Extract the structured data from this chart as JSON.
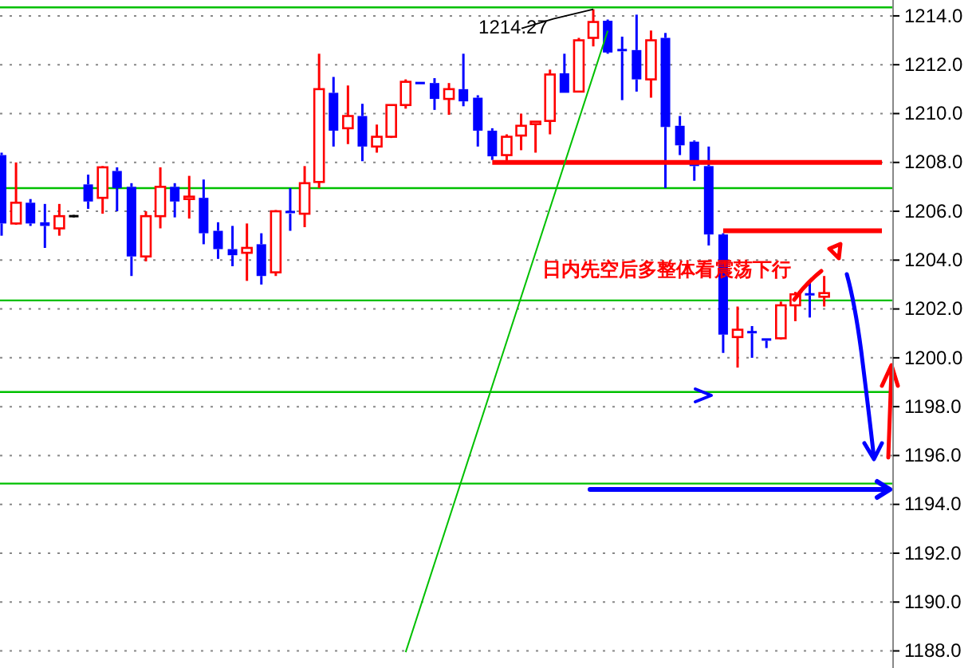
{
  "chart_data": {
    "type": "candlestick",
    "categories": [
      null,
      null,
      null,
      null,
      null,
      null,
      null,
      null,
      null,
      null,
      null,
      null,
      null,
      null,
      null,
      null,
      null,
      null,
      null,
      null,
      null,
      null,
      null,
      null,
      null,
      null,
      null,
      null,
      null,
      null,
      null,
      null,
      null,
      null,
      null,
      null,
      null,
      null,
      null,
      null,
      null,
      null,
      null,
      null,
      null,
      null,
      null,
      null,
      null,
      null,
      null,
      null,
      null,
      null,
      null,
      null,
      null,
      null,
      null,
      null,
      null,
      null
    ],
    "ohlc": [
      [
        1208.3,
        1208.4,
        1205.0,
        1205.5
      ],
      [
        1205.5,
        1208.0,
        1205.45,
        1206.35
      ],
      [
        1206.35,
        1206.5,
        1205.4,
        1205.5
      ],
      [
        1205.55,
        1206.3,
        1204.5,
        1205.4
      ],
      [
        1205.3,
        1206.3,
        1205.0,
        1205.8
      ],
      [
        1205.8,
        1205.85,
        1205.75,
        1205.8
      ],
      [
        1207.1,
        1207.5,
        1206.1,
        1206.4
      ],
      [
        1206.55,
        1207.85,
        1205.9,
        1207.8
      ],
      [
        1207.65,
        1207.8,
        1206.0,
        1206.95
      ],
      [
        1207.0,
        1207.15,
        1203.35,
        1204.15
      ],
      [
        1204.15,
        1206.0,
        1203.95,
        1205.8
      ],
      [
        1205.8,
        1207.8,
        1205.3,
        1207.0
      ],
      [
        1207.0,
        1207.15,
        1205.75,
        1206.4
      ],
      [
        1206.5,
        1207.45,
        1205.7,
        1206.55
      ],
      [
        1206.55,
        1207.3,
        1204.65,
        1205.1
      ],
      [
        1205.2,
        1205.55,
        1204.05,
        1204.45
      ],
      [
        1204.45,
        1205.4,
        1203.75,
        1204.2
      ],
      [
        1204.3,
        1205.5,
        1203.15,
        1204.5
      ],
      [
        1204.65,
        1205.1,
        1203.0,
        1203.35
      ],
      [
        1203.5,
        1206.05,
        1203.35,
        1206.0
      ],
      [
        1205.97,
        1206.95,
        1205.2,
        1205.9
      ],
      [
        1205.9,
        1207.85,
        1205.35,
        1207.15
      ],
      [
        1207.2,
        1212.45,
        1206.95,
        1211.0
      ],
      [
        1210.85,
        1211.5,
        1208.65,
        1209.3
      ],
      [
        1209.4,
        1211.15,
        1208.75,
        1209.9
      ],
      [
        1209.9,
        1210.4,
        1208.05,
        1208.65
      ],
      [
        1208.65,
        1209.55,
        1208.4,
        1209.05
      ],
      [
        1209.05,
        1210.35,
        1209.0,
        1210.35
      ],
      [
        1210.35,
        1211.4,
        1210.2,
        1211.3
      ],
      [
        1211.3,
        1211.3,
        1211.2,
        1211.2
      ],
      [
        1211.25,
        1211.45,
        1210.15,
        1210.6
      ],
      [
        1210.6,
        1211.25,
        1209.95,
        1211.0
      ],
      [
        1211.0,
        1212.45,
        1210.3,
        1210.5
      ],
      [
        1210.65,
        1210.75,
        1208.65,
        1209.3
      ],
      [
        1209.3,
        1209.4,
        1208.1,
        1208.25
      ],
      [
        1208.3,
        1209.15,
        1208.05,
        1209.05
      ],
      [
        1209.1,
        1210.0,
        1208.5,
        1209.5
      ],
      [
        1209.6,
        1209.62,
        1208.4,
        1209.62
      ],
      [
        1209.7,
        1211.8,
        1209.15,
        1211.6
      ],
      [
        1211.65,
        1212.45,
        1210.85,
        1210.85
      ],
      [
        1210.9,
        1213.1,
        1210.9,
        1213.0
      ],
      [
        1213.1,
        1214.27,
        1212.75,
        1213.75
      ],
      [
        1213.8,
        1213.85,
        1212.45,
        1212.5
      ],
      [
        1212.6,
        1213.15,
        1210.55,
        1212.55
      ],
      [
        1212.6,
        1214.05,
        1210.9,
        1211.4
      ],
      [
        1211.4,
        1213.4,
        1210.65,
        1213.0
      ],
      [
        1213.1,
        1213.3,
        1206.95,
        1209.45
      ],
      [
        1209.5,
        1209.9,
        1208.3,
        1208.7
      ],
      [
        1208.85,
        1208.9,
        1207.25,
        1207.85
      ],
      [
        1207.85,
        1208.65,
        1204.6,
        1205.05
      ],
      [
        1205.05,
        1205.1,
        1200.2,
        1200.95
      ],
      [
        1200.85,
        1202.1,
        1199.6,
        1201.15
      ],
      [
        1201.05,
        1201.3,
        1200.0,
        1201.0
      ],
      [
        1200.8,
        1200.8,
        1200.4,
        1200.7
      ],
      [
        1200.8,
        1202.3,
        1200.75,
        1202.15
      ],
      [
        1202.15,
        1202.7,
        1201.5,
        1202.6
      ],
      [
        1202.6,
        1203.15,
        1201.65,
        1202.55
      ],
      [
        1202.5,
        1203.35,
        1202.1,
        1202.65
      ],
      null,
      null,
      null,
      null
    ],
    "series": [
      {
        "type": "line",
        "color": "#ff0000",
        "values": [
          null,
          null,
          null,
          null,
          null,
          null,
          null,
          null,
          null,
          null,
          null,
          null,
          null,
          null,
          null,
          null,
          null,
          null,
          null,
          null,
          null,
          null,
          null,
          null,
          null,
          null,
          null,
          null,
          null,
          null,
          null,
          null,
          null,
          null,
          1208.0,
          1208.0,
          1208.0,
          1208.0,
          1208.0,
          1208.0,
          1208.0,
          1208.0,
          1208.0,
          1208.0,
          1208.0,
          1208.0,
          1208.0,
          1208.0,
          1208.0,
          1208.0,
          1208.0,
          1208.0,
          1208.0,
          1208.0,
          1208.0,
          1208.0,
          1208.0,
          1208.0,
          1208.0,
          1208.0,
          1208.0,
          1208.0
        ]
      },
      {
        "type": "line",
        "color": "#ff0000",
        "values": [
          null,
          null,
          null,
          null,
          null,
          null,
          null,
          null,
          null,
          null,
          null,
          null,
          null,
          null,
          null,
          null,
          null,
          null,
          null,
          null,
          null,
          null,
          null,
          null,
          null,
          null,
          null,
          null,
          null,
          null,
          null,
          null,
          null,
          null,
          null,
          null,
          null,
          null,
          null,
          null,
          null,
          null,
          null,
          null,
          null,
          null,
          null,
          null,
          null,
          null,
          1205.2,
          1205.2,
          1205.2,
          1205.2,
          1205.2,
          1205.2,
          1205.2,
          1205.2,
          1205.2,
          1205.2,
          1205.2,
          1205.2
        ]
      },
      {
        "type": "line",
        "color": "#00c000",
        "values": [
          null,
          null,
          null,
          null,
          null,
          null,
          null,
          null,
          null,
          null,
          null,
          null,
          null,
          null,
          null,
          null,
          null,
          null,
          null,
          null,
          null,
          null,
          null,
          null,
          null,
          null,
          null,
          null,
          1187.95,
          null,
          null,
          null,
          null,
          null,
          null,
          null,
          null,
          null,
          null,
          null,
          null,
          null,
          1213.39,
          null,
          null,
          null,
          null,
          null,
          null,
          null,
          null,
          null,
          null,
          null,
          null,
          null,
          null,
          null,
          null,
          null,
          null,
          null
        ]
      }
    ],
    "ref_lines": [
      {
        "axis": "y",
        "value": 1214.35,
        "color": "#00c000"
      },
      {
        "axis": "y",
        "value": 1206.95,
        "color": "#00c000"
      },
      {
        "axis": "y",
        "value": 1202.35,
        "color": "#00c000"
      },
      {
        "axis": "y",
        "value": 1198.6,
        "color": "#00c000"
      },
      {
        "axis": "y",
        "value": 1194.85,
        "color": "#00c000"
      }
    ],
    "annotations": [
      {
        "text": "1214.27",
        "y": 1214.27
      },
      "日内先空后多整体看震荡下行"
    ],
    "ylim": [
      1187.3,
      1214.65
    ],
    "yticks": [
      {
        "value": 1188,
        "label": "1188.0"
      },
      {
        "value": 1190,
        "label": "1190.0"
      },
      {
        "value": 1192,
        "label": "1192.0"
      },
      {
        "value": 1194,
        "label": "1194.0"
      },
      {
        "value": 1196,
        "label": "1196.0"
      },
      {
        "value": 1198,
        "label": "1198.0"
      },
      {
        "value": 1200,
        "label": "1200.0"
      },
      {
        "value": 1202,
        "label": "1202.0"
      },
      {
        "value": 1204,
        "label": "1204.0"
      },
      {
        "value": 1206,
        "label": "1206.0"
      },
      {
        "value": 1208,
        "label": "1208.0"
      },
      {
        "value": 1210,
        "label": "1210.0"
      },
      {
        "value": 1212,
        "label": "1212.0"
      },
      {
        "value": 1214,
        "label": "1214.0"
      }
    ],
    "grid": "y"
  }
}
